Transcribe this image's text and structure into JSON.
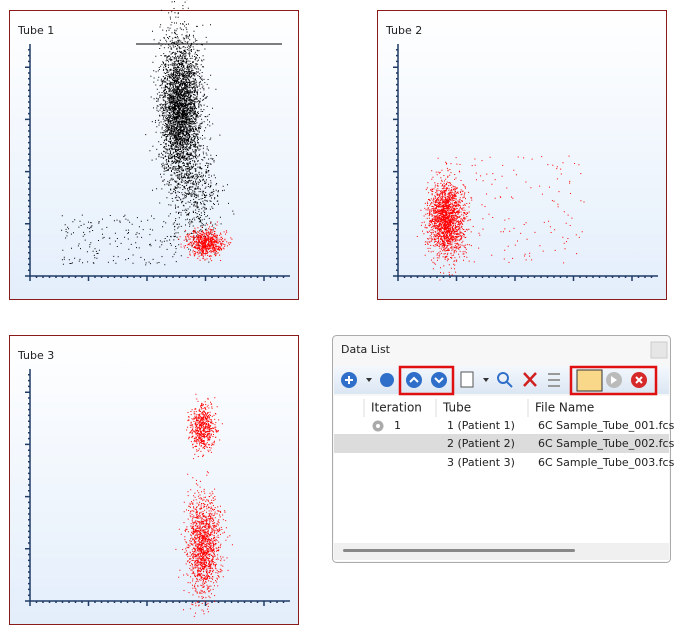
{
  "plots": [
    {
      "title": "Tube 1"
    },
    {
      "title": "Tube 2"
    },
    {
      "title": "Tube 3"
    }
  ],
  "data_list": {
    "title": "Data List",
    "columns": [
      "Iteration",
      "Tube",
      "File Name"
    ],
    "rows": [
      {
        "iteration": "1",
        "tube": "1 (Patient 1)",
        "file": "6C Sample_Tube_001.fcs"
      },
      {
        "tube": "2 (Patient 2)",
        "file": "6C Sample_Tube_002.fcs"
      },
      {
        "tube": "3 (Patient 3)",
        "file": "6C Sample_Tube_003.fcs"
      }
    ]
  }
}
